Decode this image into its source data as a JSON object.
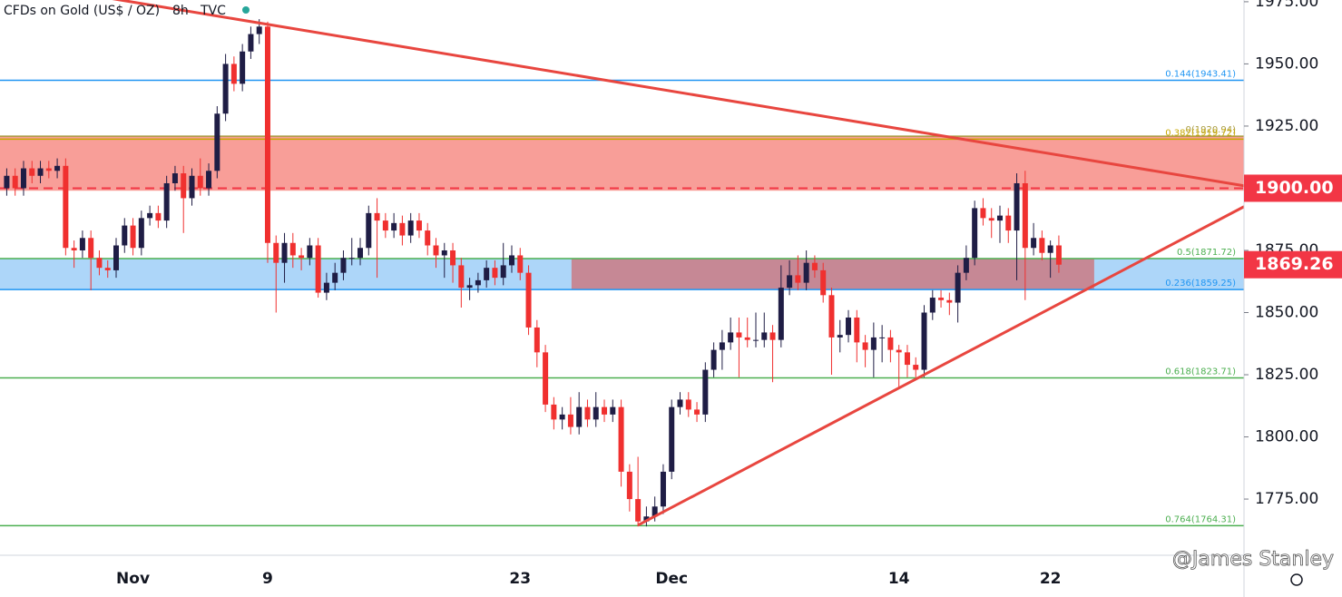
{
  "chart_data": {
    "type": "candlestick",
    "title": "CFDs on Gold (US$ / OZ)",
    "interval": "8h",
    "source": "TVC",
    "watermark": "@James Stanley",
    "up_color": "#1f1d45",
    "down_color": "#f0302f",
    "xlim": [
      -0.8,
      147
    ],
    "ylim": [
      1752.4,
      1975.7
    ],
    "yticks": [
      {
        "value": 1975,
        "label": "1975.00"
      },
      {
        "value": 1950,
        "label": "1950.00"
      },
      {
        "value": 1925,
        "label": "1925.00"
      },
      {
        "value": 1900,
        "label": "1900.00"
      },
      {
        "value": 1875,
        "label": "1875.00"
      },
      {
        "value": 1850,
        "label": "1850.00"
      },
      {
        "value": 1825,
        "label": "1825.00"
      },
      {
        "value": 1800,
        "label": "1800.00"
      },
      {
        "value": 1775,
        "label": "1775.00"
      }
    ],
    "categories": [
      null,
      null,
      null,
      null,
      null,
      null,
      null,
      null,
      null,
      null,
      null,
      null,
      null,
      null,
      null,
      "Nov",
      null,
      null,
      null,
      null,
      null,
      null,
      null,
      null,
      null,
      null,
      null,
      null,
      null,
      null,
      null,
      "9",
      null,
      null,
      null,
      null,
      null,
      null,
      null,
      null,
      null,
      null,
      null,
      null,
      null,
      null,
      null,
      null,
      null,
      null,
      null,
      null,
      null,
      null,
      null,
      null,
      null,
      null,
      null,
      null,
      null,
      "23",
      null,
      null,
      null,
      null,
      null,
      null,
      null,
      null,
      null,
      null,
      null,
      null,
      null,
      null,
      null,
      null,
      null,
      "Dec",
      null,
      null,
      null,
      null,
      null,
      null,
      null,
      null,
      null,
      null,
      null,
      null,
      null,
      null,
      null,
      null,
      null,
      null,
      null,
      null,
      null,
      null,
      null,
      null,
      null,
      null,
      "14",
      null,
      null,
      null,
      null,
      null,
      null,
      null,
      null,
      null,
      null,
      null,
      null,
      null,
      null,
      null,
      null,
      null,
      "22",
      null
    ],
    "open": [
      1900,
      1905,
      1900,
      1908,
      1905,
      1908,
      1907,
      1909,
      1876,
      1875,
      1880,
      1872,
      1868,
      1867,
      1877,
      1885,
      1876,
      1888,
      1890,
      1887,
      1902,
      1906,
      1896,
      1905,
      1900,
      1907,
      1930,
      1950,
      1942,
      1955,
      1962,
      1965,
      1878,
      1870,
      1878,
      1873,
      1872,
      1877,
      1858,
      1862,
      1866,
      1872,
      1872,
      1876,
      1890,
      1887,
      1883,
      1886,
      1881,
      1887,
      1883,
      1877,
      1873,
      1875,
      1869,
      1860,
      1861,
      1863,
      1868,
      1864,
      1869,
      1873,
      1866,
      1844,
      1834,
      1813,
      1807,
      1809,
      1804,
      1812,
      1807,
      1812,
      1809,
      1812,
      1786,
      1775,
      1766,
      1768,
      1772,
      1786,
      1812,
      1815,
      1811,
      1809,
      1827,
      1835,
      1838,
      1842,
      1840,
      1839,
      1839,
      1842,
      1839,
      1860,
      1865,
      1862,
      1870,
      1867,
      1857,
      1840,
      1841,
      1848,
      1838,
      1835,
      1840,
      1840,
      1835,
      1834,
      1829,
      1827,
      1850,
      1856,
      1855,
      1854,
      1866,
      1872,
      1892,
      1888,
      1887,
      1889,
      1883,
      1902,
      1876,
      1880,
      1874,
      1877
    ],
    "high": [
      1908,
      1908,
      1911,
      1911,
      1911,
      1911,
      1912,
      1912,
      1879,
      1883,
      1883,
      1875,
      1871,
      1880,
      1888,
      1888,
      1891,
      1893,
      1893,
      1905,
      1909,
      1909,
      1908,
      1912,
      1910,
      1933,
      1954,
      1953,
      1958,
      1965,
      1968,
      1967,
      1881,
      1882,
      1882,
      1876,
      1880,
      1880,
      1866,
      1870,
      1875,
      1880,
      1880,
      1893,
      1896,
      1890,
      1890,
      1889,
      1890,
      1890,
      1886,
      1880,
      1878,
      1878,
      1872,
      1864,
      1866,
      1871,
      1871,
      1878,
      1877,
      1876,
      1869,
      1847,
      1837,
      1816,
      1812,
      1816,
      1818,
      1815,
      1818,
      1815,
      1815,
      1815,
      1789,
      1792,
      1772,
      1776,
      1789,
      1815,
      1818,
      1818,
      1814,
      1830,
      1838,
      1843,
      1848,
      1848,
      1848,
      1850,
      1850,
      1845,
      1869,
      1871,
      1873,
      1875,
      1873,
      1870,
      1860,
      1847,
      1851,
      1851,
      1841,
      1846,
      1845,
      1843,
      1837,
      1837,
      1832,
      1853,
      1859,
      1859,
      1858,
      1869,
      1877,
      1895,
      1896,
      1892,
      1893,
      1892,
      1906,
      1907,
      1886,
      1883,
      1879,
      1881
    ],
    "low": [
      1897,
      1897,
      1897,
      1902,
      1902,
      1904,
      1904,
      1873,
      1868,
      1872,
      1859,
      1865,
      1864,
      1864,
      1874,
      1873,
      1873,
      1885,
      1884,
      1884,
      1899,
      1882,
      1893,
      1897,
      1897,
      1904,
      1927,
      1939,
      1939,
      1952,
      1958,
      1870,
      1850,
      1862,
      1868,
      1867,
      1869,
      1856,
      1855,
      1859,
      1863,
      1869,
      1869,
      1873,
      1864,
      1880,
      1880,
      1877,
      1878,
      1880,
      1873,
      1868,
      1864,
      1862,
      1852,
      1855,
      1858,
      1860,
      1861,
      1861,
      1866,
      1863,
      1841,
      1828,
      1810,
      1803,
      1803,
      1801,
      1801,
      1804,
      1804,
      1806,
      1806,
      1780,
      1770,
      1764,
      1764,
      1766,
      1769,
      1783,
      1809,
      1808,
      1806,
      1806,
      1824,
      1827,
      1835,
      1824,
      1836,
      1836,
      1836,
      1822,
      1836,
      1857,
      1859,
      1859,
      1864,
      1854,
      1825,
      1834,
      1838,
      1830,
      1828,
      1824,
      1830,
      1830,
      1820,
      1824,
      1824,
      1824,
      1847,
      1852,
      1849,
      1846,
      1863,
      1869,
      1885,
      1880,
      1878,
      1878,
      1863,
      1855,
      1873,
      1871,
      1864,
      1866
    ],
    "close": [
      1905,
      1900,
      1908,
      1905,
      1908,
      1907,
      1909,
      1876,
      1875,
      1880,
      1872,
      1868,
      1867,
      1877,
      1885,
      1876,
      1888,
      1890,
      1887,
      1902,
      1906,
      1896,
      1905,
      1900,
      1907,
      1930,
      1950,
      1942,
      1955,
      1962,
      1965,
      1878,
      1870,
      1878,
      1873,
      1872,
      1877,
      1858,
      1862,
      1866,
      1872,
      1872,
      1876,
      1890,
      1887,
      1883,
      1886,
      1881,
      1887,
      1883,
      1877,
      1873,
      1875,
      1869,
      1860,
      1861,
      1863,
      1868,
      1864,
      1869,
      1873,
      1866,
      1844,
      1834,
      1813,
      1807,
      1809,
      1804,
      1812,
      1807,
      1812,
      1809,
      1812,
      1786,
      1775,
      1766,
      1768,
      1772,
      1786,
      1812,
      1815,
      1811,
      1809,
      1827,
      1835,
      1838,
      1842,
      1840,
      1839,
      1839,
      1842,
      1839,
      1860,
      1865,
      1862,
      1870,
      1867,
      1857,
      1840,
      1841,
      1848,
      1838,
      1835,
      1840,
      1840,
      1835,
      1834,
      1829,
      1827,
      1850,
      1856,
      1855,
      1854,
      1866,
      1872,
      1892,
      1888,
      1887,
      1889,
      1883,
      1902,
      1876,
      1880,
      1874,
      1877,
      1869.26
    ],
    "zones": [
      {
        "low": 1899,
        "high": 1920.94,
        "color": "#f7948d",
        "x": [
          -0.8,
          147
        ]
      },
      {
        "low": 1859.25,
        "high": 1871.72,
        "color": "#a4d1f8",
        "x": [
          -0.8,
          147
        ]
      },
      {
        "low": 1859.25,
        "high": 1871.72,
        "color": "#c9808a",
        "x": [
          67.1,
          129.2
        ]
      }
    ],
    "levels": [
      {
        "value": 1943.41,
        "label": "0.144(1943.41)",
        "color": "#2196f3"
      },
      {
        "value": 1920.94,
        "label": "0(1920.94)",
        "color": "#a89a3c"
      },
      {
        "value": 1919.72,
        "label": "0.382(1919.72)",
        "color": "#c8a800"
      },
      {
        "value": 1871.72,
        "label": "0.5(1871.72)",
        "color": "#4caf50"
      },
      {
        "value": 1859.25,
        "label": "0.236(1859.25)",
        "color": "#2196f3"
      },
      {
        "value": 1823.71,
        "label": "0.618(1823.71)",
        "color": "#4caf50"
      },
      {
        "value": 1764.31,
        "label": "0.764(1764.31)",
        "color": "#4caf50"
      }
    ],
    "trendlines": [
      {
        "x": [
          -0.8,
          147
        ],
        "y": [
          1983.7,
          1901
        ],
        "color": "#e8463f"
      },
      {
        "x": [
          75,
          147
        ],
        "y": [
          1764.5,
          1892.6
        ],
        "color": "#e8463f"
      }
    ],
    "price_labels": [
      {
        "value": 1900,
        "label": "1900.00",
        "color": "#f23645",
        "line": "dashed"
      },
      {
        "value": 1869.26,
        "label": "1869.26",
        "color": "#f23645"
      }
    ]
  }
}
